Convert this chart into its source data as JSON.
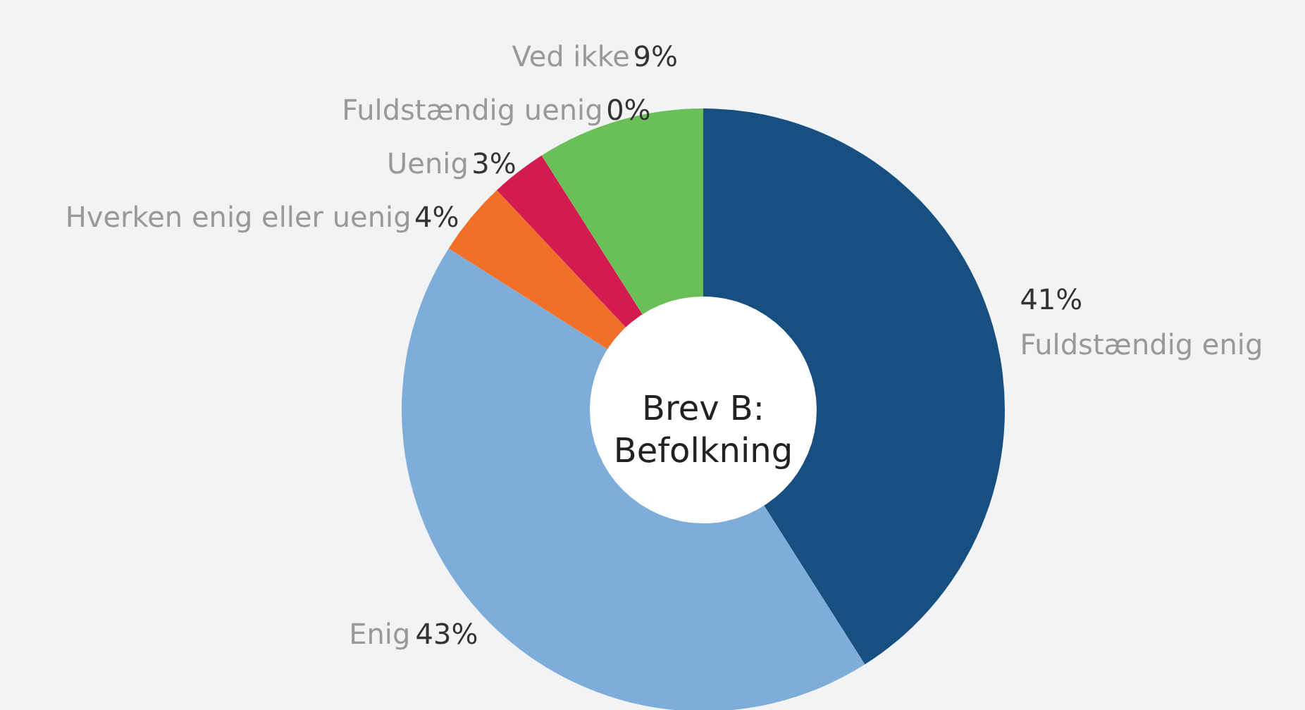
{
  "chart_data": {
    "type": "donut",
    "title": "Brev B:\nBefolkning",
    "categories": [
      "Fuldstændig enig",
      "Enig",
      "Hverken enig eller uenig",
      "Uenig",
      "Fuldstændig uenig",
      "Ved ikke"
    ],
    "values": [
      41,
      43,
      4,
      3,
      0,
      9
    ],
    "colors": [
      "#174f80",
      "#7fadd9",
      "#f26f2a",
      "#d21b4f",
      "#e8e41a",
      "#6bbf59"
    ],
    "value_labels": [
      "41%",
      "43%",
      "4%",
      "3%",
      "0%",
      "9%"
    ]
  }
}
